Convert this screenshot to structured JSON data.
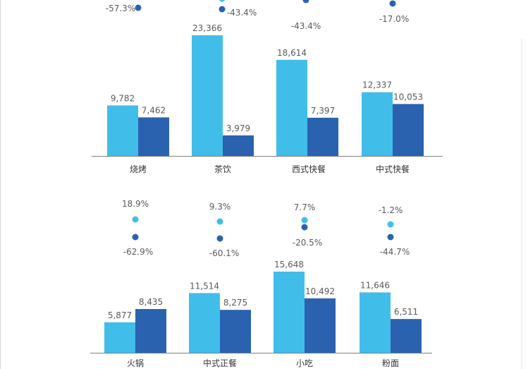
{
  "colors": {
    "light": "#41bdea",
    "dark": "#2a62b0",
    "axis": "#7f7f7f",
    "text": "#5a5a5a"
  },
  "chart_data": [
    {
      "type": "bar",
      "categories": [
        "烧烤",
        "茶饮",
        "西式快餐",
        "中式快餐"
      ],
      "series": [
        {
          "values": [
            9782,
            23366,
            18614,
            12337
          ]
        },
        {
          "values": [
            7462,
            3979,
            7397,
            10053
          ]
        }
      ],
      "value_labels": [
        [
          "9,782",
          "23,366",
          "18,614",
          "12,337"
        ],
        [
          "7,462",
          "3,979",
          "7,397",
          "10,053"
        ]
      ],
      "growth_rates": [
        {
          "values": [
            null,
            null,
            null,
            null
          ],
          "labels": [
            "",
            "",
            "",
            ""
          ]
        },
        {
          "values": [
            -57.3,
            -43.4,
            -43.4,
            -17.0
          ],
          "labels": [
            "-57.3%",
            "-43.4%",
            "-43.4%",
            "-17.0%"
          ]
        }
      ],
      "ylim": [
        0,
        24000
      ]
    },
    {
      "type": "bar",
      "categories": [
        "火锅",
        "中式正餐",
        "小吃",
        "粉面"
      ],
      "series": [
        {
          "values": [
            5877,
            11514,
            15648,
            11646
          ]
        },
        {
          "values": [
            8435,
            8275,
            10492,
            6511
          ]
        }
      ],
      "value_labels": [
        [
          "5,877",
          "11,514",
          "15,648",
          "11,646"
        ],
        [
          "8,435",
          "8,275",
          "10,492",
          "6,511"
        ]
      ],
      "growth_rates": [
        {
          "values": [
            18.9,
            9.3,
            7.7,
            -1.2
          ],
          "labels": [
            "18.9%",
            "9.3%",
            "7.7%",
            "-1.2%"
          ]
        },
        {
          "values": [
            -62.9,
            -60.1,
            -20.5,
            -44.7
          ],
          "labels": [
            "-62.9%",
            "-60.1%",
            "-20.5%",
            "-44.7%"
          ]
        }
      ],
      "ylim": [
        0,
        24000
      ]
    }
  ]
}
